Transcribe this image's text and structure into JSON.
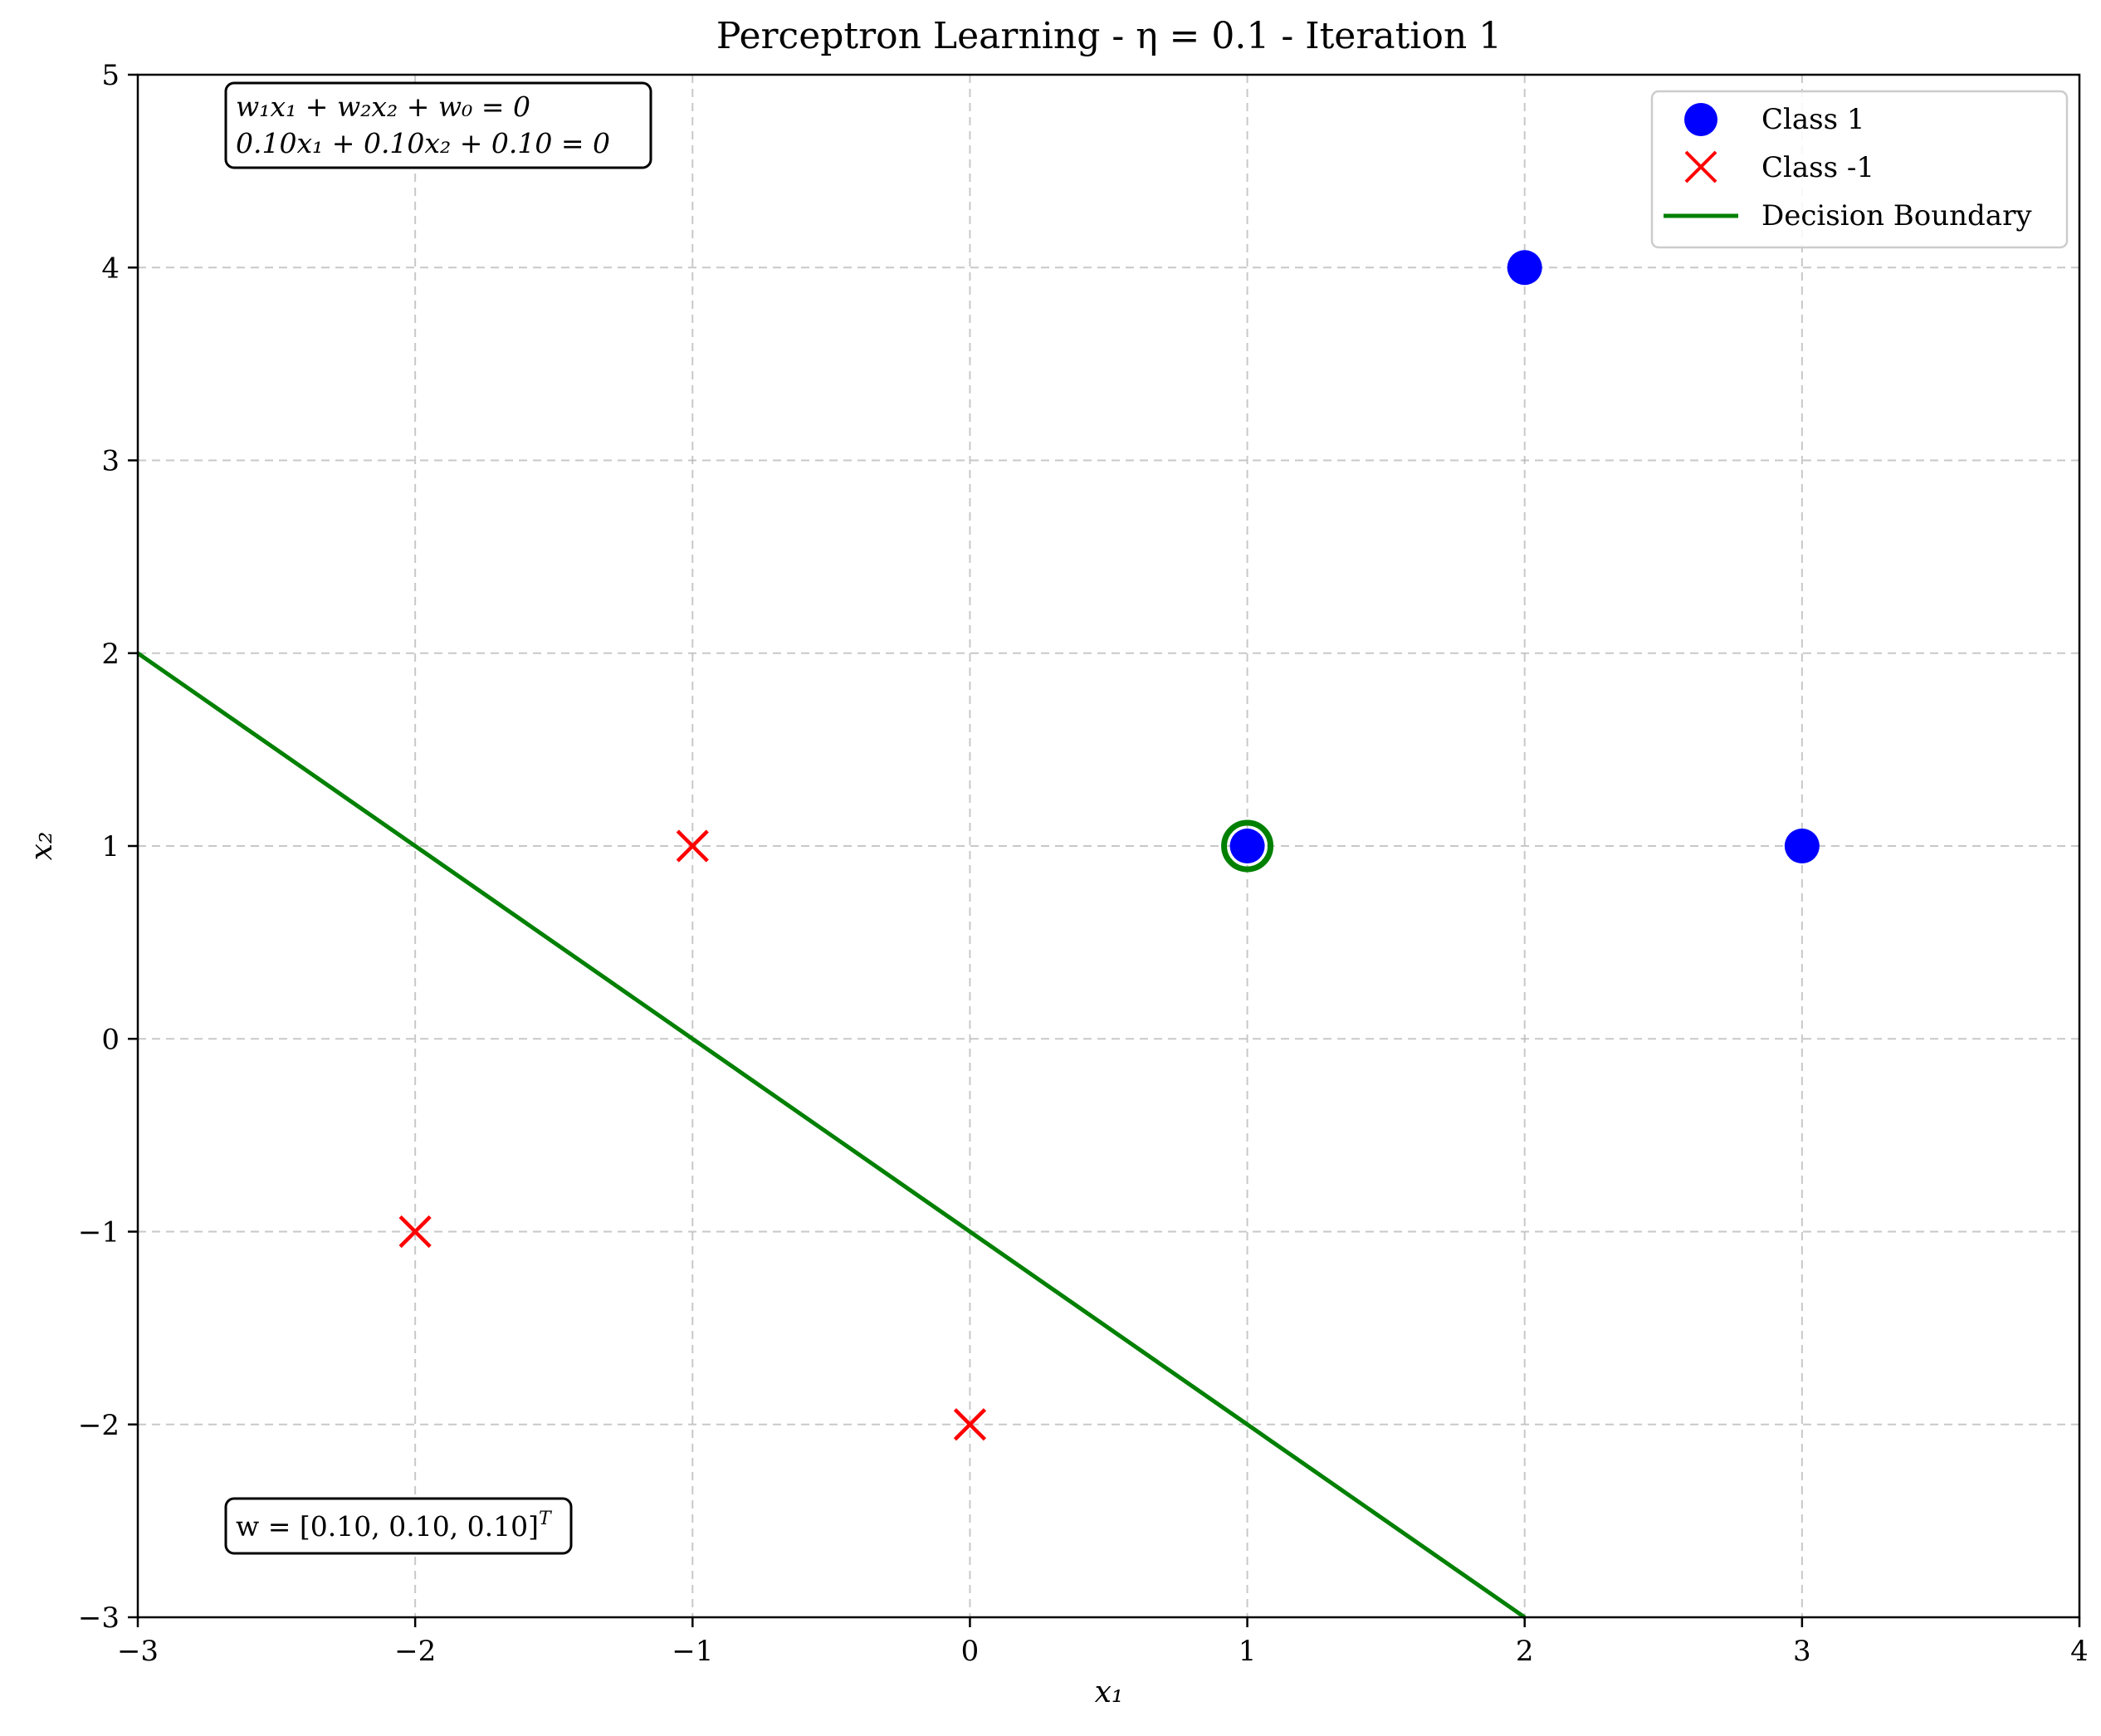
{
  "chart_data": {
    "type": "scatter",
    "title": "Perceptron Learning - η = 0.1 - Iteration 1",
    "xlabel": "x₁",
    "ylabel": "x₂",
    "xlim": [
      -3,
      4
    ],
    "ylim": [
      -3,
      5
    ],
    "x_ticks": [
      -3,
      -2,
      -1,
      0,
      1,
      2,
      3,
      4
    ],
    "y_ticks": [
      -3,
      -2,
      -1,
      0,
      1,
      2,
      3,
      4,
      5
    ],
    "x_tick_labels": [
      "−3",
      "−2",
      "−1",
      "0",
      "1",
      "2",
      "3",
      "4"
    ],
    "y_tick_labels": [
      "−3",
      "−2",
      "−1",
      "0",
      "1",
      "2",
      "3",
      "4",
      "5"
    ],
    "grid": true,
    "grid_style": "dashed",
    "legend_position": "top-right",
    "series": [
      {
        "name": "Class 1",
        "marker": "circle",
        "color": "#0000ff",
        "points": [
          [
            2,
            4
          ],
          [
            1,
            1
          ],
          [
            3,
            1
          ]
        ]
      },
      {
        "name": "Class -1",
        "marker": "x",
        "color": "#ff0000",
        "points": [
          [
            -1,
            1
          ],
          [
            -2,
            -1
          ],
          [
            0,
            -2
          ]
        ]
      }
    ],
    "decision_boundary": {
      "name": "Decision Boundary",
      "color": "#008000",
      "weights": {
        "w1": 0.1,
        "w2": 0.1,
        "w0": 0.1
      }
    },
    "highlighted_point": {
      "x": 1,
      "y": 1,
      "ring_color": "#008000"
    },
    "annotations": {
      "equation_general": "w₁x₁ + w₂x₂ + w₀ = 0",
      "equation_values": "0.10x₁ + 0.10x₂ + 0.10 = 0",
      "weights_vector": "w = [0.10, 0.10, 0.10]",
      "weights_vector_sup": "T"
    }
  }
}
